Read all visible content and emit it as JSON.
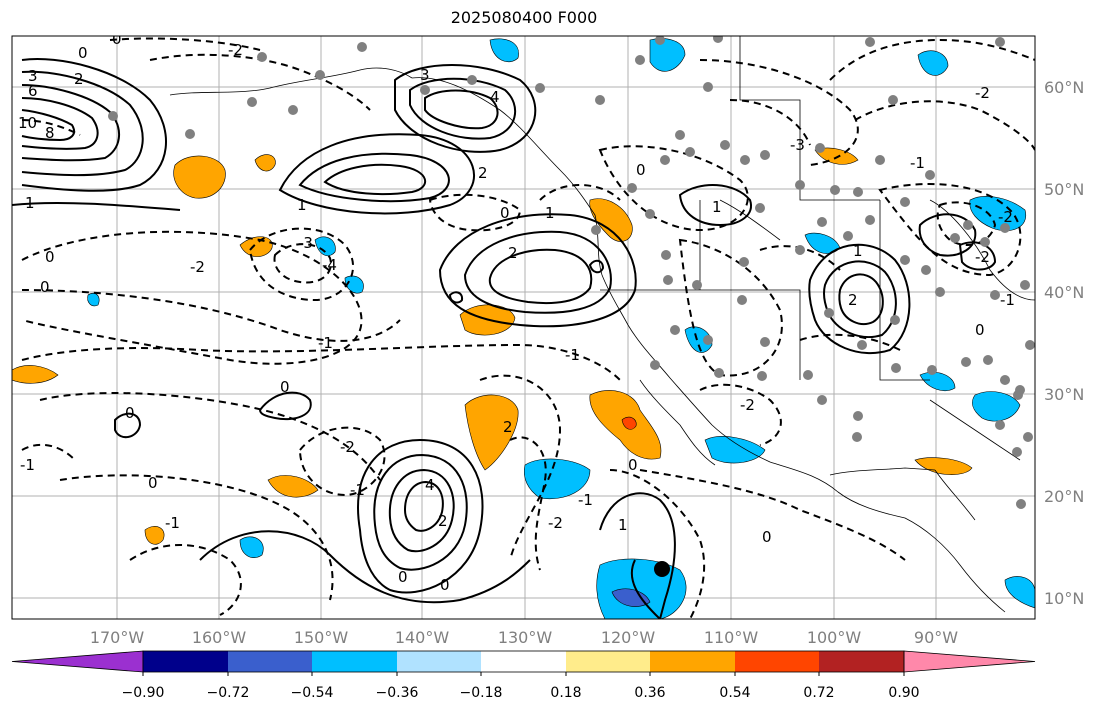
{
  "title": "2025080400 F000",
  "map": {
    "lon_ticks": [
      "170°W",
      "160°W",
      "150°W",
      "140°W",
      "130°W",
      "120°W",
      "110°W",
      "100°W",
      "90°W"
    ],
    "lat_ticks": [
      "60°N",
      "50°N",
      "40°N",
      "30°N",
      "20°N",
      "10°N"
    ],
    "contour_labels": [
      "0",
      "-1",
      "-2",
      "-3",
      "-4",
      "1",
      "2",
      "3",
      "4",
      "6",
      "8",
      "10"
    ]
  },
  "colorbar": {
    "labels": [
      "−0.90",
      "−0.72",
      "−0.54",
      "−0.36",
      "−0.18",
      "0.18",
      "0.36",
      "0.54",
      "0.72",
      "0.90"
    ],
    "colors": [
      "#9b30d0",
      "#00008b",
      "#3a5fcd",
      "#00bfff",
      "#b0e2ff",
      "#ffffff",
      "#ffec8b",
      "#ffa500",
      "#ff4500",
      "#b22222",
      "#ff88aa"
    ]
  }
}
